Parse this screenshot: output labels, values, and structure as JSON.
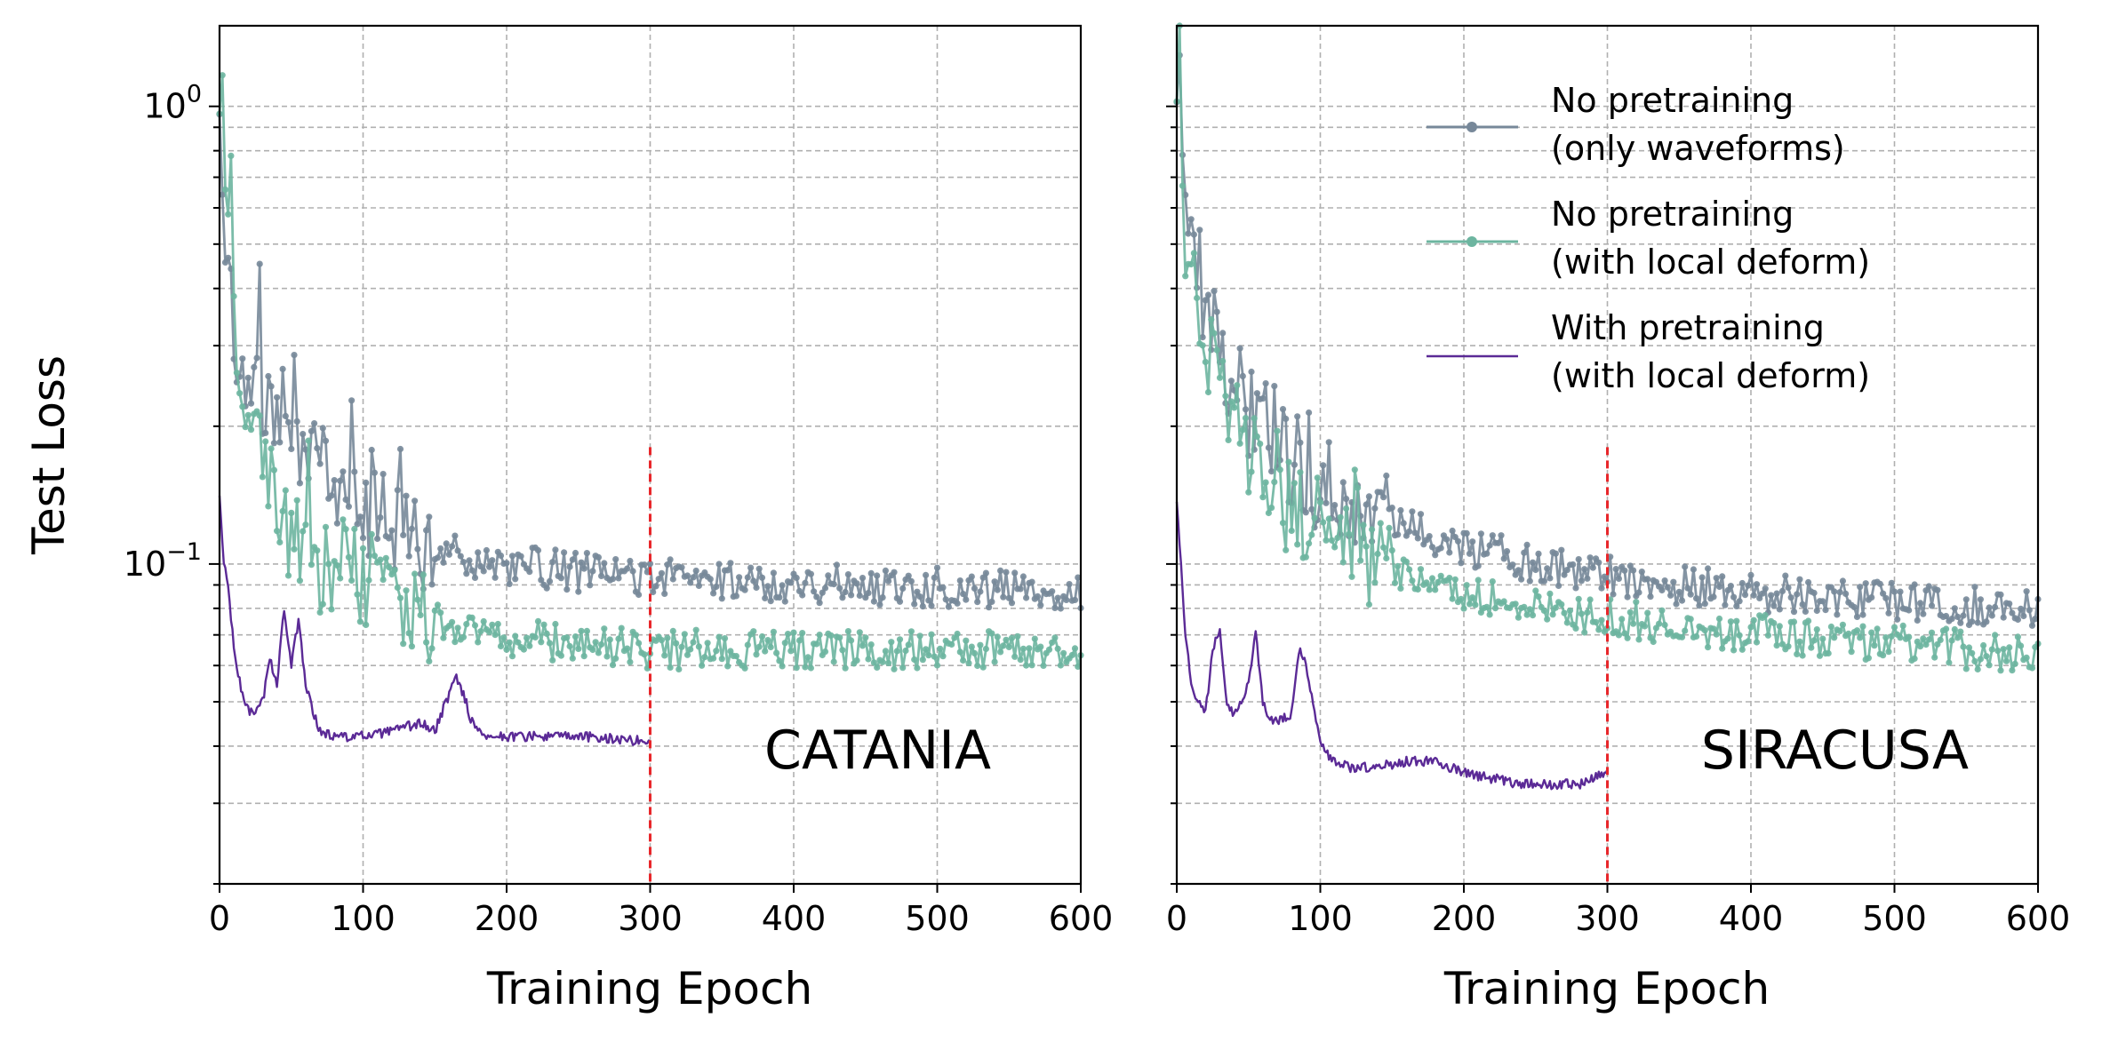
{
  "chart_data": [
    {
      "type": "line",
      "panel_label": "CATANIA",
      "xlabel": "Training Epoch",
      "ylabel": "Test Loss",
      "yscale": "log",
      "xlim": [
        0,
        600
      ],
      "ylim": [
        0.02,
        1.5
      ],
      "x_ticks": [
        "0",
        "100",
        "200",
        "300",
        "400",
        "500",
        "600"
      ],
      "y_ticks": [
        "10^0",
        "10^-1"
      ],
      "grid": true,
      "vline": {
        "x": 300,
        "ymax": 0.18,
        "color": "#e8262a"
      },
      "series": [
        {
          "name": "No pretraining (only waveforms)",
          "color": "#778899",
          "marker": true,
          "x": [
            1,
            5,
            10,
            15,
            20,
            30,
            40,
            50,
            60,
            70,
            80,
            90,
            100,
            120,
            140,
            160,
            180,
            200,
            225,
            250,
            275,
            300,
            350,
            400,
            450,
            500,
            550,
            600
          ],
          "y": [
            0.9,
            0.45,
            0.32,
            0.29,
            0.27,
            0.24,
            0.21,
            0.19,
            0.17,
            0.155,
            0.145,
            0.14,
            0.13,
            0.12,
            0.11,
            0.105,
            0.102,
            0.1,
            0.098,
            0.096,
            0.095,
            0.094,
            0.092,
            0.091,
            0.09,
            0.089,
            0.088,
            0.088
          ]
        },
        {
          "name": "No pretraining (with local deform)",
          "color": "#6db5a0",
          "marker": true,
          "x": [
            1,
            5,
            10,
            15,
            20,
            30,
            40,
            50,
            60,
            70,
            80,
            90,
            100,
            120,
            140,
            160,
            180,
            200,
            225,
            250,
            275,
            300,
            350,
            400,
            450,
            500,
            550,
            600
          ],
          "y": [
            0.9,
            0.5,
            0.35,
            0.28,
            0.22,
            0.16,
            0.13,
            0.115,
            0.105,
            0.1,
            0.1,
            0.098,
            0.095,
            0.085,
            0.078,
            0.074,
            0.071,
            0.069,
            0.068,
            0.067,
            0.066,
            0.065,
            0.065,
            0.065,
            0.065,
            0.065,
            0.065,
            0.065
          ]
        },
        {
          "name": "With pretraining (with local deform)",
          "color": "#5b2a96",
          "marker": false,
          "x": [
            0,
            3,
            6,
            10,
            15,
            20,
            25,
            30,
            35,
            40,
            45,
            50,
            55,
            60,
            65,
            70,
            80,
            100,
            120,
            140,
            150,
            160,
            165,
            170,
            175,
            180,
            190,
            200,
            250,
            300
          ],
          "y": [
            0.14,
            0.1,
            0.09,
            0.065,
            0.053,
            0.048,
            0.047,
            0.05,
            0.062,
            0.055,
            0.08,
            0.06,
            0.075,
            0.055,
            0.048,
            0.043,
            0.042,
            0.042,
            0.043,
            0.045,
            0.043,
            0.052,
            0.057,
            0.052,
            0.046,
            0.043,
            0.042,
            0.042,
            0.042,
            0.041
          ]
        }
      ]
    },
    {
      "type": "line",
      "panel_label": "SIRACUSA",
      "xlabel": "Training Epoch",
      "ylabel": "",
      "yscale": "log",
      "xlim": [
        0,
        600
      ],
      "ylim": [
        0.02,
        1.5
      ],
      "x_ticks": [
        "0",
        "100",
        "200",
        "300",
        "400",
        "500",
        "600"
      ],
      "grid": true,
      "vline": {
        "x": 300,
        "ymax": 0.18,
        "color": "#e8262a"
      },
      "legend": {
        "position": "top-right"
      },
      "series": [
        {
          "name": "No pretraining (only waveforms)",
          "legend_lines": [
            "No pretraining",
            "(only waveforms)"
          ],
          "color": "#778899",
          "marker": true,
          "x": [
            1,
            5,
            10,
            15,
            20,
            30,
            40,
            50,
            60,
            70,
            80,
            90,
            100,
            120,
            140,
            160,
            180,
            200,
            225,
            250,
            275,
            300,
            350,
            400,
            450,
            500,
            550,
            600
          ],
          "y": [
            1.3,
            0.6,
            0.45,
            0.38,
            0.33,
            0.28,
            0.25,
            0.22,
            0.2,
            0.185,
            0.17,
            0.16,
            0.15,
            0.135,
            0.125,
            0.12,
            0.115,
            0.11,
            0.105,
            0.1,
            0.097,
            0.095,
            0.09,
            0.087,
            0.085,
            0.083,
            0.081,
            0.08
          ]
        },
        {
          "name": "No pretraining (with local deform)",
          "legend_lines": [
            "No pretraining",
            "(with local deform)"
          ],
          "color": "#6db5a0",
          "marker": true,
          "x": [
            1,
            5,
            10,
            15,
            20,
            30,
            40,
            50,
            60,
            70,
            80,
            90,
            100,
            120,
            140,
            160,
            180,
            200,
            225,
            250,
            275,
            300,
            350,
            400,
            450,
            500,
            550,
            600
          ],
          "y": [
            1.3,
            0.55,
            0.42,
            0.36,
            0.3,
            0.25,
            0.21,
            0.18,
            0.16,
            0.145,
            0.13,
            0.125,
            0.12,
            0.11,
            0.1,
            0.095,
            0.09,
            0.087,
            0.083,
            0.08,
            0.078,
            0.076,
            0.073,
            0.071,
            0.069,
            0.067,
            0.065,
            0.063
          ]
        },
        {
          "name": "With pretraining (with local deform)",
          "legend_lines": [
            "With pretraining",
            "(with local deform)"
          ],
          "color": "#5b2a96",
          "marker": false,
          "x": [
            0,
            3,
            6,
            10,
            15,
            20,
            25,
            30,
            35,
            40,
            45,
            50,
            55,
            60,
            65,
            70,
            80,
            85,
            90,
            95,
            100,
            110,
            120,
            140,
            160,
            180,
            200,
            220,
            240,
            260,
            280,
            300
          ],
          "y": [
            0.14,
            0.1,
            0.07,
            0.055,
            0.05,
            0.047,
            0.065,
            0.072,
            0.05,
            0.047,
            0.05,
            0.055,
            0.07,
            0.05,
            0.046,
            0.045,
            0.047,
            0.065,
            0.06,
            0.05,
            0.04,
            0.037,
            0.036,
            0.036,
            0.037,
            0.037,
            0.035,
            0.034,
            0.033,
            0.033,
            0.033,
            0.035
          ]
        }
      ]
    }
  ]
}
